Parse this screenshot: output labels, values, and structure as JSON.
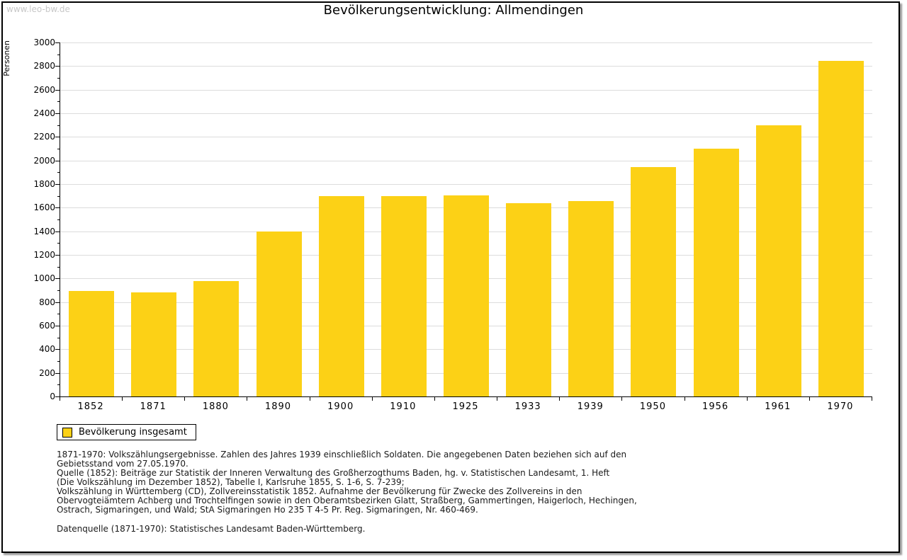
{
  "page": {
    "watermark": "www.leo-bw.de",
    "title": "Bevölkerungsentwicklung: Allmendingen"
  },
  "chart_data": {
    "type": "bar",
    "title": "Bevölkerungsentwicklung: Allmendingen",
    "xlabel": "",
    "ylabel": "Personen",
    "categories": [
      "1852",
      "1871",
      "1880",
      "1890",
      "1900",
      "1910",
      "1925",
      "1933",
      "1939",
      "1950",
      "1956",
      "1961",
      "1970"
    ],
    "values": [
      892,
      884,
      976,
      1398,
      1696,
      1701,
      1706,
      1641,
      1657,
      1942,
      2098,
      2298,
      2845
    ],
    "ylim": [
      0,
      3000
    ],
    "ytick_major": 200,
    "ytick_minor": 100,
    "grid": "horizontal-major-only",
    "bar_color": "#FCD116",
    "grid_color": "#DCDCDC",
    "legend_position": "bottom-left",
    "legend_entries": [
      "Bevölkerung insgesamt"
    ]
  },
  "legend": {
    "label": "Bevölkerung insgesamt",
    "swatch_color": "#FCD116"
  },
  "footer": {
    "lines": [
      "1871-1970: Volkszählungsergebnisse. Zahlen des Jahres 1939 einschließlich Soldaten. Die angegebenen Daten beziehen sich auf den",
      "Gebietsstand vom 27.05.1970.",
      "Quelle (1852): Beiträge zur Statistik der Inneren Verwaltung des Großherzogthums Baden, hg. v. Statistischen Landesamt, 1. Heft",
      "(Die Volkszählung im Dezember 1852), Tabelle I, Karlsruhe 1855, S. 1-6, S. 7-239;",
      "Volkszählung in Württemberg (CD), Zollvereinsstatistik 1852. Aufnahme der Bevölkerung für Zwecke des Zollvereins in den",
      "Obervogteiämtern Achberg und Trochtelfingen sowie in den Oberamtsbezirken Glatt, Straßberg, Gammertingen, Haigerloch, Hechingen,",
      "Ostrach, Sigmaringen, und Wald; StA Sigmaringen Ho 235 T 4-5 Pr. Reg. Sigmaringen, Nr. 460-469."
    ],
    "source": "Datenquelle (1871-1970): Statistisches Landesamt Baden-Württemberg."
  }
}
